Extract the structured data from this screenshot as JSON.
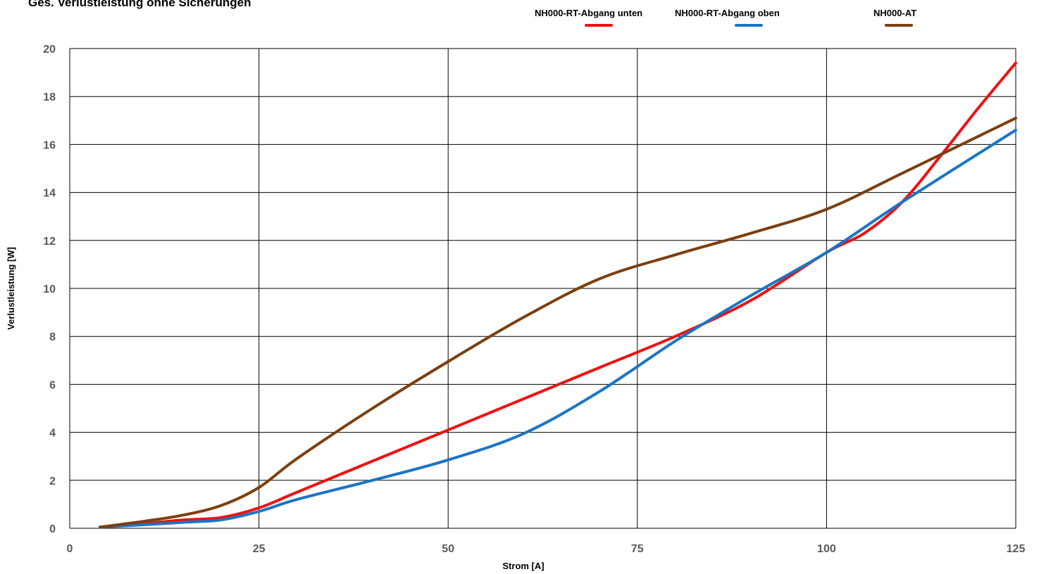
{
  "chart_data": {
    "type": "line",
    "title": "Ges. Verlustleistung ohne Sicherungen",
    "xlabel": "Strom [A]",
    "ylabel": "Verlustleistung [W]",
    "xlim": [
      0,
      125
    ],
    "ylim": [
      0,
      20
    ],
    "xticks": [
      0,
      25,
      50,
      75,
      100,
      125
    ],
    "yticks": [
      0,
      2,
      4,
      6,
      8,
      10,
      12,
      14,
      16,
      18,
      20
    ],
    "grid": true,
    "legend_position": "top",
    "series": [
      {
        "name": "NH000-RT-Abgang unten",
        "color": "#ee1111",
        "x": [
          4,
          10,
          15,
          20,
          25,
          30,
          40,
          50,
          60,
          70,
          80,
          90,
          100,
          105,
          110,
          115,
          120,
          125
        ],
        "y": [
          0.05,
          0.2,
          0.35,
          0.45,
          0.85,
          1.5,
          2.8,
          4.1,
          5.4,
          6.7,
          8.0,
          9.5,
          11.5,
          12.3,
          13.6,
          15.5,
          17.5,
          19.4
        ]
      },
      {
        "name": "NH000-RT-Abgang oben",
        "color": "#1a74c4",
        "x": [
          4,
          10,
          15,
          20,
          25,
          30,
          40,
          50,
          60,
          70,
          80,
          90,
          100,
          110,
          125
        ],
        "y": [
          0.05,
          0.15,
          0.25,
          0.35,
          0.7,
          1.2,
          2.0,
          2.85,
          3.95,
          5.7,
          7.8,
          9.7,
          11.5,
          13.6,
          16.6
        ]
      },
      {
        "name": "NH000-AT",
        "color": "#7b3f10",
        "x": [
          4,
          10,
          15,
          20,
          25,
          30,
          40,
          50,
          60,
          70,
          80,
          90,
          100,
          110,
          125
        ],
        "y": [
          0.05,
          0.3,
          0.55,
          0.95,
          1.7,
          2.9,
          5.0,
          6.95,
          8.8,
          10.4,
          11.4,
          12.3,
          13.3,
          14.8,
          17.1
        ]
      }
    ]
  }
}
